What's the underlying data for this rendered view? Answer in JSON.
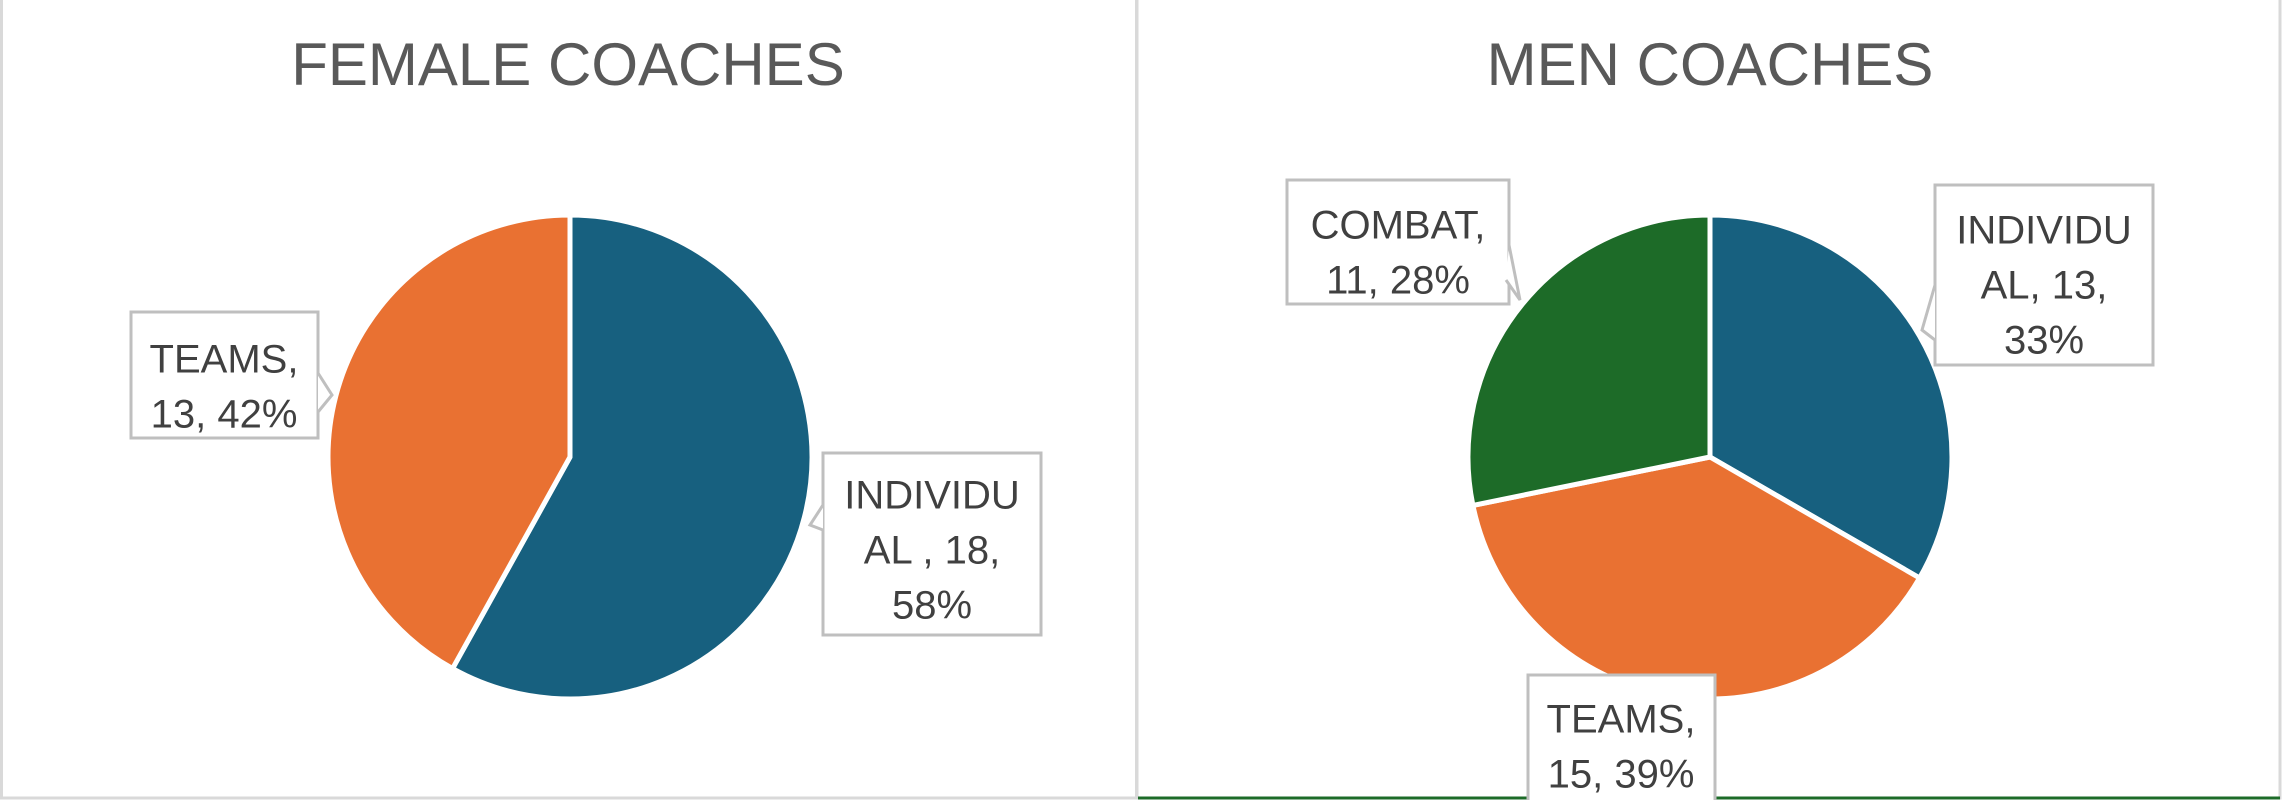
{
  "colors": {
    "individual": "#17607f",
    "teams": "#e97132",
    "combat": "#1d6b28",
    "title": "#595959",
    "label_text": "#404040",
    "callout_border": "#bfbfbf"
  },
  "chart_data": [
    {
      "type": "pie",
      "title": "FEMALE COACHES",
      "legend": "none",
      "slices": [
        {
          "category": "INDIVIDUAL",
          "value": 18,
          "percent": 58,
          "color": "#17607f",
          "label_lines": [
            "INDIVIDU",
            "AL , 18,",
            "58%"
          ]
        },
        {
          "category": "TEAMS",
          "value": 13,
          "percent": 42,
          "color": "#e97132",
          "label_lines": [
            "TEAMS,",
            "13, 42%"
          ]
        }
      ]
    },
    {
      "type": "pie",
      "title": "MEN COACHES",
      "legend": "none",
      "slices": [
        {
          "category": "INDIVIDUAL",
          "value": 13,
          "percent": 33,
          "color": "#17607f",
          "label_lines": [
            "INDIVIDU",
            "AL, 13,",
            "33%"
          ]
        },
        {
          "category": "TEAMS",
          "value": 15,
          "percent": 39,
          "color": "#e97132",
          "label_lines": [
            "TEAMS,",
            "15, 39%"
          ]
        },
        {
          "category": "COMBAT",
          "value": 11,
          "percent": 28,
          "color": "#1d6b28",
          "label_lines": [
            "COMBAT,",
            "11, 28%"
          ]
        }
      ]
    }
  ]
}
